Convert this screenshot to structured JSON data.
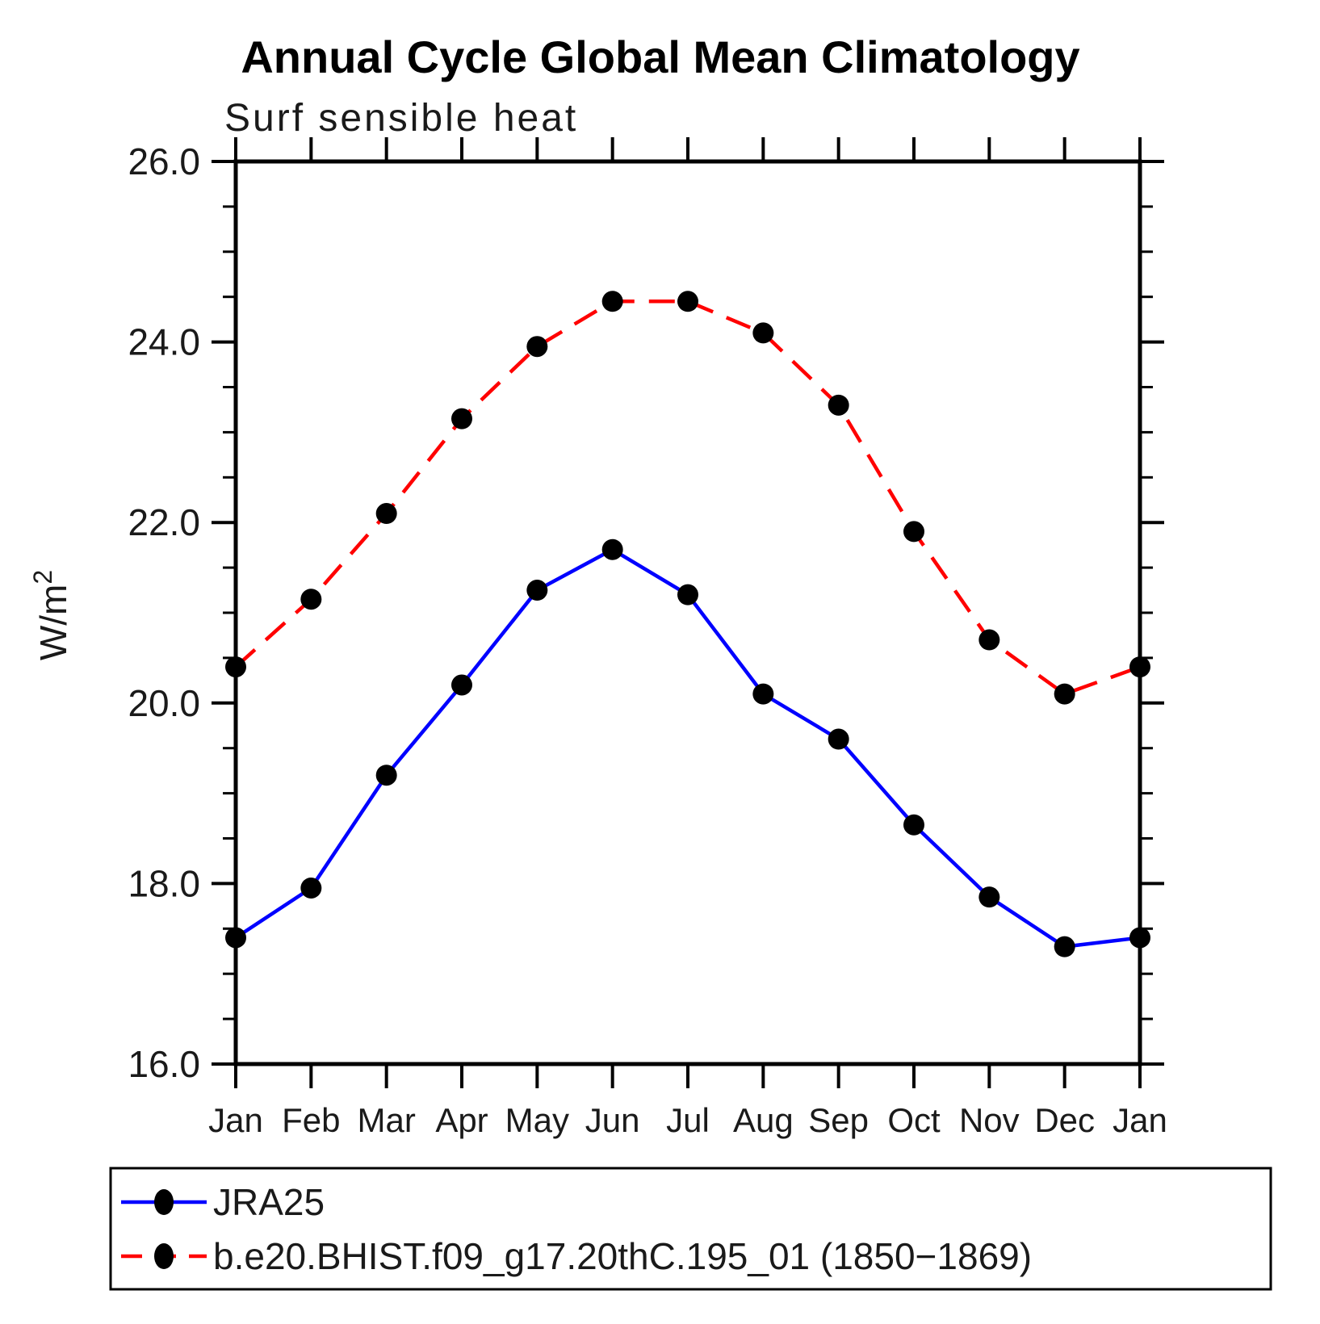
{
  "page": {
    "background": "#ffffff"
  },
  "chart_data": {
    "type": "line",
    "title": "Annual Cycle Global Mean Climatology",
    "subtitle": "Surf sensible heat",
    "ylabel": "W/m²",
    "xlabel": "",
    "categories": [
      "Jan",
      "Feb",
      "Mar",
      "Apr",
      "May",
      "Jun",
      "Jul",
      "Aug",
      "Sep",
      "Oct",
      "Nov",
      "Dec",
      "Jan"
    ],
    "ylim": [
      16.0,
      26.0
    ],
    "ytick_interval_major": 2.0,
    "ytick_interval_minor": 0.5,
    "ytick_labels": [
      "16.0",
      "18.0",
      "20.0",
      "22.0",
      "24.0",
      "26.0"
    ],
    "grid": false,
    "axis_color": "#000000",
    "marker": {
      "shape": "circle",
      "color": "#000000"
    },
    "legend_position": "bottom-left-box",
    "series": [
      {
        "name": "JRA25",
        "color": "#0000ff",
        "line_style": "solid",
        "values": [
          17.4,
          17.95,
          19.2,
          20.2,
          21.25,
          21.7,
          21.2,
          20.1,
          19.6,
          18.65,
          17.85,
          17.3,
          17.4
        ]
      },
      {
        "name": "b.e20.BHIST.f09_g17.20thC.195_01 (1850−1869)",
        "color": "#ff0000",
        "line_style": "dashed",
        "values": [
          20.4,
          21.15,
          22.1,
          23.15,
          23.95,
          24.45,
          24.45,
          24.1,
          23.3,
          21.9,
          20.7,
          20.1,
          20.4
        ]
      }
    ]
  }
}
